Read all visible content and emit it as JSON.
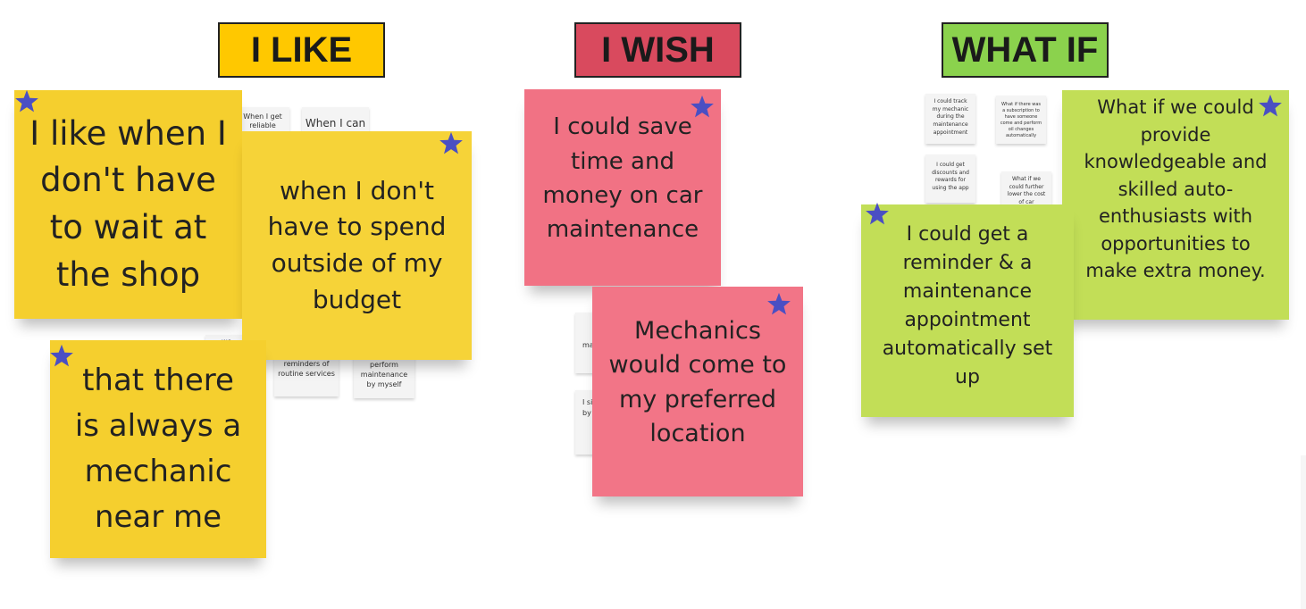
{
  "colors": {
    "like_header": "#ffc800",
    "wish_header": "#d94a5e",
    "whatif_header": "#8bd24d",
    "yellow_note": "#f5cf2e",
    "red_note": "#f17284",
    "green_note": "#c2de57",
    "star": "#4a4fc3"
  },
  "headers": {
    "like": "I LIKE",
    "wish": "I WISH",
    "whatif": "WHAT IF"
  },
  "small_cards": {
    "like_1": "When I get reliable",
    "like_2": "When I can",
    "like_3": "reminders of routine services",
    "like_4": "perform maintenance by myself",
    "like_5": "wo",
    "wish_1": "ma",
    "wish_2": "I si ma by",
    "whatif_1": "I could track my mechanic during the maintenance appointment",
    "whatif_2": "What if there was a subscription to have someone come and perform oil changes automatically",
    "whatif_3": "I could get discounts and rewards for using the app",
    "whatif_4": "What if we could further lower the cost of car"
  },
  "notes": {
    "like_wait": "I like when I don't have to wait at the shop",
    "like_budget": "when I don't have to spend outside of my budget",
    "like_mechanic": "that there is always a mechanic near me",
    "wish_save": "I could save time and money on car maintenance",
    "wish_location": "Mechanics would come to my preferred location",
    "whatif_reminder": "I could get a reminder & a maintenance appointment automatically set up",
    "whatif_knowledge": "What if we could provide knowledgeable and skilled auto-enthusiasts with opportunities to make extra money."
  },
  "icons": {
    "star": "star-icon"
  }
}
